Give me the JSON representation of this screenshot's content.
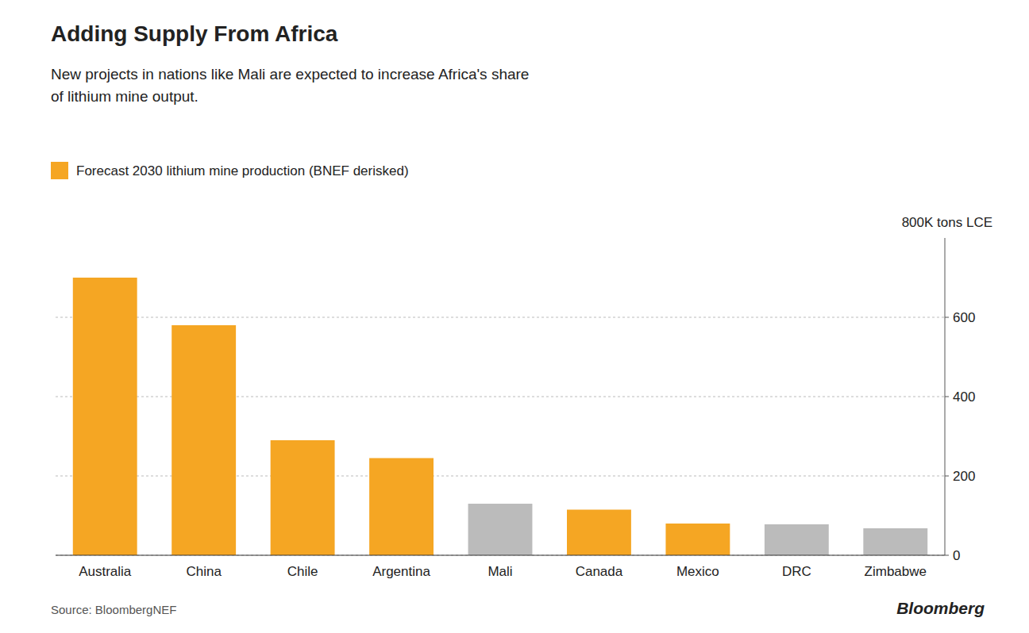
{
  "chart_data": {
    "type": "bar",
    "title": "Adding Supply From Africa",
    "subtitle": "New projects in nations like Mali are expected to increase Africa's share\nof lithium mine output.",
    "ylabel": "800K tons LCE",
    "annotations": [
      "Source: BloombergNEF",
      "Bloomberg"
    ],
    "categories": [
      "Australia",
      "China",
      "Chile",
      "Argentina",
      "Mali",
      "Canada",
      "Mexico",
      "DRC",
      "Zimbabwe"
    ],
    "series": [
      {
        "name": "Forecast 2030 lithium mine production (BNEF derisked)",
        "values": [
          700,
          580,
          290,
          245,
          130,
          115,
          80,
          78,
          68
        ],
        "colors": [
          "#F5A623",
          "#F5A623",
          "#F5A623",
          "#F5A623",
          "#BBBBBB",
          "#F5A623",
          "#F5A623",
          "#BBBBBB",
          "#BBBBBB"
        ]
      }
    ],
    "ylim": [
      0,
      800
    ],
    "yticks": [
      0,
      200,
      400,
      600
    ],
    "grid": true,
    "legend": "top-left"
  }
}
